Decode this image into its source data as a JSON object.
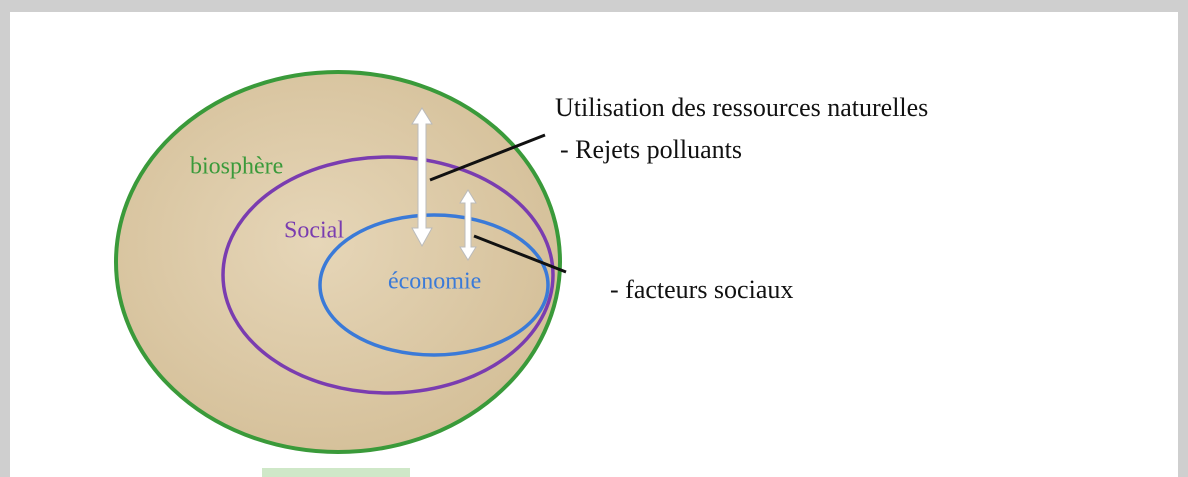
{
  "diagram": {
    "regions": [
      {
        "label": "biosphère"
      },
      {
        "label": "Social"
      },
      {
        "label": "économie"
      }
    ],
    "annotations": [
      {
        "label": "Utilisation des ressources naturelles"
      },
      {
        "label": "- Rejets polluants"
      },
      {
        "label": "- facteurs sociaux"
      }
    ]
  }
}
